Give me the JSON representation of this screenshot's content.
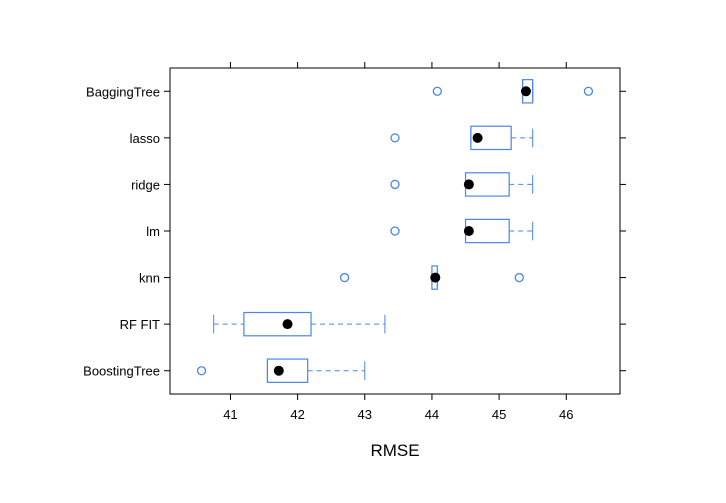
{
  "chart_data": {
    "type": "boxplot",
    "xlabel": "RMSE",
    "ylabel": "",
    "xlim": [
      40.1,
      46.8
    ],
    "x_ticks": [
      41,
      42,
      43,
      44,
      45,
      46
    ],
    "x_tick_labels": [
      "41",
      "42",
      "43",
      "44",
      "45",
      "46"
    ],
    "orientation": "horizontal",
    "grid": false,
    "colors": {
      "box": "#4a86e8",
      "median": "#000000",
      "frame": "#000000",
      "axis_text": "#000000"
    },
    "categories": [
      "BaggingTree",
      "lasso",
      "ridge",
      "lm",
      "knn",
      "RF FIT",
      "BoostingTree"
    ],
    "boxes": [
      {
        "name": "BaggingTree",
        "whisker_low": 45.35,
        "q1": 45.35,
        "median": 45.4,
        "q3": 45.5,
        "whisker_high": 45.5,
        "outliers": [
          44.08,
          46.33
        ]
      },
      {
        "name": "lasso",
        "whisker_low": 44.58,
        "q1": 44.58,
        "median": 44.68,
        "q3": 45.18,
        "whisker_high": 45.5,
        "outliers": [
          43.45
        ]
      },
      {
        "name": "ridge",
        "whisker_low": 44.5,
        "q1": 44.5,
        "median": 44.55,
        "q3": 45.15,
        "whisker_high": 45.5,
        "outliers": [
          43.45
        ]
      },
      {
        "name": "lm",
        "whisker_low": 44.5,
        "q1": 44.5,
        "median": 44.55,
        "q3": 45.15,
        "whisker_high": 45.5,
        "outliers": [
          43.45
        ]
      },
      {
        "name": "knn",
        "whisker_low": 44.0,
        "q1": 44.0,
        "median": 44.05,
        "q3": 44.08,
        "whisker_high": 44.08,
        "outliers": [
          42.7,
          45.3
        ]
      },
      {
        "name": "RF FIT",
        "whisker_low": 40.75,
        "q1": 41.2,
        "median": 41.85,
        "q3": 42.2,
        "whisker_high": 43.3,
        "outliers": []
      },
      {
        "name": "BoostingTree",
        "whisker_low": 41.55,
        "q1": 41.55,
        "median": 41.72,
        "q3": 42.15,
        "whisker_high": 43.0,
        "outliers": [
          40.57
        ]
      }
    ]
  }
}
